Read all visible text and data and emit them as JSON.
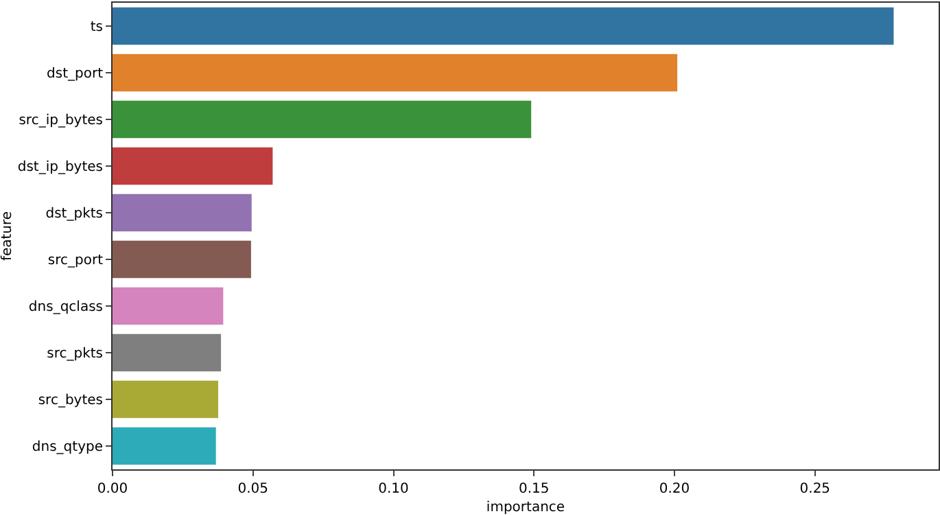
{
  "chart_data": {
    "type": "bar",
    "orientation": "horizontal",
    "xlabel": "importance",
    "ylabel": "feature",
    "categories": [
      "ts",
      "dst_port",
      "src_ip_bytes",
      "dst_ip_bytes",
      "dst_pkts",
      "src_port",
      "dns_qclass",
      "src_pkts",
      "src_bytes",
      "dns_qtype"
    ],
    "values": [
      0.278,
      0.201,
      0.149,
      0.057,
      0.0495,
      0.0493,
      0.0394,
      0.0386,
      0.0376,
      0.0368
    ],
    "colors": [
      "#3274a1",
      "#e1812c",
      "#3a923a",
      "#c03d3e",
      "#9372b2",
      "#845b53",
      "#d684bd",
      "#7f7f7f",
      "#a9aa35",
      "#2eabb8"
    ],
    "xlim": [
      0,
      0.294
    ],
    "xticks": [
      {
        "value": 0,
        "label": "0.00"
      },
      {
        "value": 0.05,
        "label": "0.05"
      },
      {
        "value": 0.1,
        "label": "0.10"
      },
      {
        "value": 0.15,
        "label": "0.15"
      },
      {
        "value": 0.2,
        "label": "0.20"
      },
      {
        "value": 0.25,
        "label": "0.25"
      }
    ],
    "grid": false
  }
}
